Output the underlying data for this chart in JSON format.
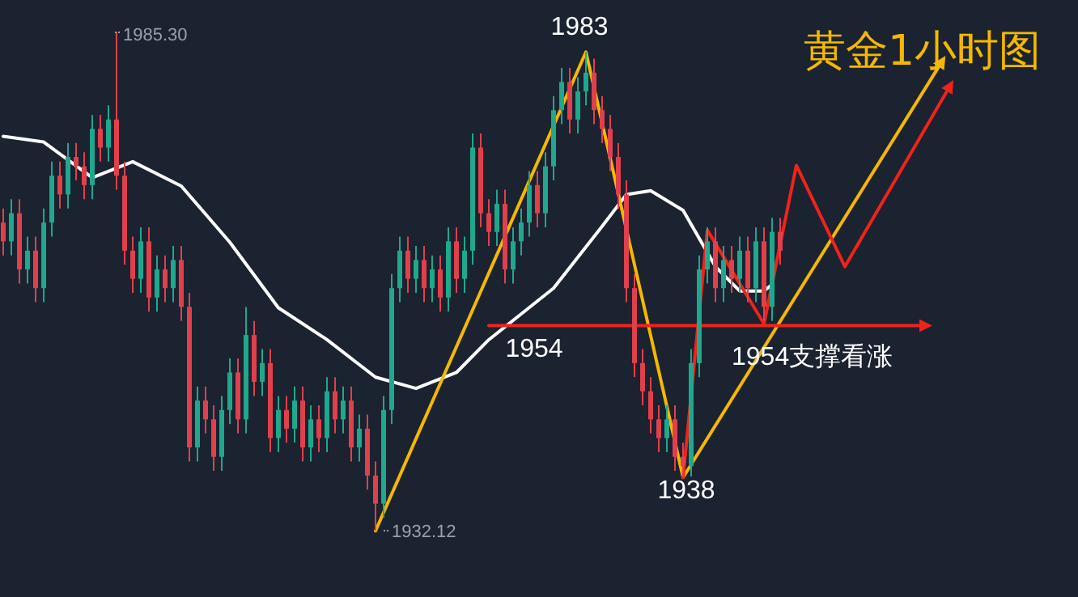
{
  "chart_data": {
    "type": "candlestick",
    "title": "黄金1小时图",
    "categories": [
      null,
      null,
      null,
      null,
      null,
      null,
      null,
      null,
      null,
      null,
      null,
      null,
      null,
      null,
      null,
      null,
      null,
      null,
      null,
      null,
      null,
      null,
      null,
      null,
      null,
      null,
      null,
      null,
      null,
      null,
      null,
      null,
      null,
      null,
      null,
      null,
      null,
      null,
      null,
      null,
      null,
      null,
      null,
      null,
      null,
      null,
      null,
      null,
      null,
      null,
      null,
      null,
      null,
      null,
      null,
      null,
      null,
      null,
      null,
      null,
      null,
      null,
      null,
      null,
      null,
      null,
      null,
      null,
      null,
      null,
      null,
      null,
      null,
      null,
      null,
      null,
      null,
      null,
      null,
      null,
      null,
      null,
      null,
      null,
      null,
      null,
      null,
      null,
      null,
      null,
      null,
      null,
      null,
      null,
      null,
      null,
      null,
      null,
      null,
      null,
      null,
      null,
      null,
      null,
      null,
      null,
      null,
      null,
      null,
      null,
      null,
      null,
      null,
      null,
      null,
      null,
      null,
      null,
      null,
      null,
      null
    ],
    "ohlc": [
      [
        1965,
        1966.5,
        1961.5,
        1963
      ],
      [
        1963,
        1967.5,
        1961.5,
        1966
      ],
      [
        1966,
        1967.5,
        1958.5,
        1960
      ],
      [
        1960,
        1963.5,
        1958.5,
        1962
      ],
      [
        1962,
        1963.5,
        1956.5,
        1958
      ],
      [
        1958,
        1966.5,
        1956.5,
        1965
      ],
      [
        1965,
        1971.5,
        1963.5,
        1970
      ],
      [
        1970,
        1971.5,
        1966.5,
        1968
      ],
      [
        1968,
        1973.5,
        1966.5,
        1972
      ],
      [
        1972,
        1973.5,
        1969.5,
        1971
      ],
      [
        1971,
        1972.5,
        1967.5,
        1969
      ],
      [
        1969,
        1976.5,
        1967.5,
        1975
      ],
      [
        1975,
        1976.5,
        1971.5,
        1973
      ],
      [
        1973,
        1977.5,
        1971.5,
        1976
      ],
      [
        1976,
        1985.3,
        1968.5,
        1970
      ],
      [
        1970,
        1971.5,
        1960.5,
        1962
      ],
      [
        1962,
        1963.5,
        1957.5,
        1959
      ],
      [
        1959,
        1964.5,
        1957.5,
        1963
      ],
      [
        1963,
        1964.5,
        1955.5,
        1957
      ],
      [
        1957,
        1961.5,
        1955.5,
        1960
      ],
      [
        1960,
        1961.5,
        1956.5,
        1958
      ],
      [
        1958,
        1962.5,
        1956.5,
        1961
      ],
      [
        1961,
        1962.5,
        1954.5,
        1956
      ],
      [
        1956,
        1957.5,
        1939.5,
        1941
      ],
      [
        1941,
        1947.5,
        1939.5,
        1946
      ],
      [
        1946,
        1947.5,
        1942.5,
        1944
      ],
      [
        1944,
        1945.5,
        1938.5,
        1940
      ],
      [
        1940,
        1946.5,
        1938.5,
        1945
      ],
      [
        1945,
        1950.5,
        1943.5,
        1949
      ],
      [
        1949,
        1950.5,
        1942.5,
        1944
      ],
      [
        1944,
        1956,
        1942.5,
        1953
      ],
      [
        1953,
        1954.5,
        1946.5,
        1948
      ],
      [
        1948,
        1951.5,
        1946.5,
        1950
      ],
      [
        1950,
        1951.5,
        1940.5,
        1942
      ],
      [
        1942,
        1946.5,
        1940.5,
        1945
      ],
      [
        1945,
        1946.5,
        1941.5,
        1943
      ],
      [
        1943,
        1947.5,
        1941.5,
        1946
      ],
      [
        1946,
        1947.5,
        1939.5,
        1941
      ],
      [
        1941,
        1945.5,
        1939.5,
        1944
      ],
      [
        1944,
        1945.5,
        1940.5,
        1942
      ],
      [
        1942,
        1948.5,
        1940.5,
        1947
      ],
      [
        1947,
        1948.5,
        1942.5,
        1944
      ],
      [
        1944,
        1947.5,
        1942.5,
        1946
      ],
      [
        1946,
        1947.5,
        1939.5,
        1941
      ],
      [
        1941,
        1944.5,
        1939.5,
        1943
      ],
      [
        1943,
        1944.5,
        1936.5,
        1938
      ],
      [
        1938,
        1939.5,
        1932.12,
        1935
      ],
      [
        1935,
        1946.5,
        1933.5,
        1945
      ],
      [
        1945,
        1959.5,
        1943.5,
        1958
      ],
      [
        1958,
        1963.5,
        1956.5,
        1962
      ],
      [
        1962,
        1963.5,
        1957.5,
        1959
      ],
      [
        1959,
        1962.5,
        1957.5,
        1961
      ],
      [
        1961,
        1962.5,
        1956.5,
        1958
      ],
      [
        1958,
        1961.5,
        1956.5,
        1960
      ],
      [
        1960,
        1961.5,
        1955.5,
        1957
      ],
      [
        1957,
        1964.5,
        1955.5,
        1963
      ],
      [
        1963,
        1964.5,
        1957.5,
        1959
      ],
      [
        1959,
        1963.5,
        1957.5,
        1962
      ],
      [
        1962,
        1974.5,
        1960.5,
        1973
      ],
      [
        1973,
        1974.5,
        1964.5,
        1966
      ],
      [
        1966,
        1967.5,
        1962.5,
        1964
      ],
      [
        1964,
        1968.5,
        1962.5,
        1967
      ],
      [
        1967,
        1968.5,
        1958.5,
        1960
      ],
      [
        1960,
        1964.5,
        1958.5,
        1963
      ],
      [
        1963,
        1966.5,
        1961.5,
        1965
      ],
      [
        1965,
        1970.5,
        1963.5,
        1969
      ],
      [
        1969,
        1970.5,
        1964.5,
        1966
      ],
      [
        1966,
        1972.5,
        1964.5,
        1971
      ],
      [
        1971,
        1978.5,
        1969.5,
        1977
      ],
      [
        1977,
        1981.5,
        1975.5,
        1980
      ],
      [
        1980,
        1981.5,
        1974.5,
        1976
      ],
      [
        1976,
        1980.5,
        1974.5,
        1979
      ],
      [
        1979,
        1983.2,
        1977.5,
        1981
      ],
      [
        1981,
        1982.5,
        1975.5,
        1977
      ],
      [
        1977,
        1978.5,
        1973.5,
        1975
      ],
      [
        1975,
        1976.5,
        1970.5,
        1972
      ],
      [
        1972,
        1973.5,
        1966.5,
        1968
      ],
      [
        1968,
        1969.5,
        1956.5,
        1958
      ],
      [
        1958,
        1959.5,
        1948.5,
        1950
      ],
      [
        1950,
        1951.5,
        1945.5,
        1947
      ],
      [
        1947,
        1948.5,
        1942.5,
        1944
      ],
      [
        1944,
        1945.5,
        1940.5,
        1942
      ],
      [
        1942,
        1945.5,
        1940.5,
        1944
      ],
      [
        1944,
        1945.5,
        1938.5,
        1940
      ],
      [
        1940,
        1941.5,
        1937.8,
        1939
      ],
      [
        1939,
        1951.5,
        1937.9,
        1950
      ],
      [
        1950,
        1961.5,
        1948.5,
        1960
      ],
      [
        1960,
        1964.5,
        1958.5,
        1963
      ],
      [
        1963,
        1964.5,
        1956.5,
        1958
      ],
      [
        1958,
        1962.5,
        1956.5,
        1961
      ],
      [
        1961,
        1962.5,
        1957.5,
        1959
      ],
      [
        1959,
        1963.5,
        1957.5,
        1962
      ],
      [
        1962,
        1963.5,
        1956.5,
        1958
      ],
      [
        1958,
        1964.5,
        1956.5,
        1963
      ],
      [
        1963,
        1964.5,
        1954.5,
        1956
      ],
      [
        1956,
        1965.5,
        1954.5,
        1964
      ],
      [
        1964,
        1965.5,
        1960.5,
        1962
      ],
      null,
      null,
      null,
      null,
      null,
      null,
      null,
      null,
      null,
      null,
      null,
      null,
      null,
      null,
      null,
      null,
      null,
      null,
      null,
      null,
      null,
      null,
      null,
      null
    ],
    "series": [
      {
        "type": "line",
        "color": "#ffffff",
        "values": [
          1974.2,
          null,
          null,
          null,
          null,
          1973.6,
          null,
          null,
          null,
          null,
          null,
          1969.8,
          null,
          null,
          null,
          null,
          1971.5,
          null,
          null,
          null,
          null,
          null,
          1968.9,
          null,
          null,
          null,
          null,
          null,
          1962.9,
          null,
          null,
          null,
          null,
          null,
          1955.9,
          null,
          null,
          null,
          null,
          null,
          1952.5,
          null,
          null,
          null,
          null,
          null,
          1948.5,
          null,
          null,
          null,
          null,
          1947.3,
          null,
          null,
          null,
          null,
          1949.0,
          null,
          null,
          null,
          1952.5,
          null,
          null,
          null,
          null,
          null,
          null,
          null,
          1958.0,
          null,
          null,
          null,
          null,
          null,
          1964.6,
          null,
          null,
          1968.0,
          null,
          null,
          1968.4,
          null,
          null,
          null,
          1966.3,
          null,
          null,
          null,
          1960.3,
          null,
          null,
          1957.7,
          null,
          null,
          1957.7,
          1958.4,
          null,
          null,
          null,
          null,
          null,
          null,
          null,
          null,
          null,
          null,
          null,
          null,
          null,
          null,
          null,
          null,
          null,
          null,
          null,
          null,
          null,
          null,
          null,
          null,
          null
        ]
      },
      {
        "type": "line",
        "color": "#f5b800",
        "values": [
          null,
          null,
          null,
          null,
          null,
          null,
          null,
          null,
          null,
          null,
          null,
          null,
          null,
          null,
          null,
          null,
          null,
          null,
          null,
          null,
          null,
          null,
          null,
          null,
          null,
          null,
          null,
          null,
          null,
          null,
          null,
          null,
          null,
          null,
          null,
          null,
          null,
          null,
          null,
          null,
          null,
          null,
          null,
          null,
          null,
          null,
          1932.1,
          null,
          null,
          null,
          null,
          null,
          null,
          null,
          null,
          null,
          null,
          null,
          null,
          null,
          null,
          null,
          null,
          null,
          null,
          null,
          null,
          null,
          null,
          null,
          null,
          null,
          1983.2,
          null,
          null,
          null,
          null,
          null,
          null,
          null,
          null,
          null,
          null,
          null,
          1937.8,
          null,
          null,
          null,
          null,
          null,
          null,
          null,
          null,
          null,
          null,
          null,
          null,
          null,
          null,
          null,
          null,
          null,
          null,
          null,
          null,
          null,
          null,
          null,
          null,
          null,
          null,
          null,
          null,
          null,
          null,
          null,
          1982.2,
          null,
          null,
          null,
          null
        ]
      },
      {
        "type": "line",
        "color": "#f0231b",
        "values": [
          null,
          null,
          null,
          null,
          null,
          null,
          null,
          null,
          null,
          null,
          null,
          null,
          null,
          null,
          null,
          null,
          null,
          null,
          null,
          null,
          null,
          null,
          null,
          null,
          null,
          null,
          null,
          null,
          null,
          null,
          null,
          null,
          null,
          null,
          null,
          null,
          null,
          null,
          null,
          null,
          null,
          null,
          null,
          null,
          null,
          null,
          null,
          null,
          null,
          null,
          null,
          null,
          null,
          null,
          null,
          null,
          null,
          null,
          null,
          null,
          null,
          null,
          null,
          null,
          null,
          null,
          null,
          null,
          null,
          null,
          null,
          null,
          null,
          null,
          null,
          null,
          null,
          null,
          null,
          null,
          null,
          null,
          null,
          null,
          1937.8,
          null,
          null,
          1964.2,
          null,
          null,
          null,
          null,
          null,
          null,
          1954.2,
          null,
          null,
          null,
          1971.1,
          null,
          null,
          null,
          null,
          null,
          1960.3,
          null,
          null,
          null,
          null,
          null,
          null,
          null,
          null,
          null,
          null,
          null,
          null,
          1979.6,
          null,
          null,
          null
        ]
      },
      {
        "type": "line",
        "color": "#f0231b",
        "values": [
          null,
          null,
          null,
          null,
          null,
          null,
          null,
          null,
          null,
          null,
          null,
          null,
          null,
          null,
          null,
          null,
          null,
          null,
          null,
          null,
          null,
          null,
          null,
          null,
          null,
          null,
          null,
          null,
          null,
          null,
          null,
          null,
          null,
          null,
          null,
          null,
          null,
          null,
          null,
          null,
          null,
          null,
          null,
          null,
          null,
          null,
          null,
          null,
          null,
          null,
          null,
          null,
          null,
          null,
          null,
          null,
          null,
          null,
          null,
          null,
          1954,
          null,
          null,
          null,
          null,
          null,
          null,
          null,
          null,
          null,
          null,
          null,
          null,
          null,
          null,
          null,
          null,
          null,
          null,
          null,
          null,
          null,
          null,
          null,
          null,
          null,
          null,
          null,
          null,
          null,
          null,
          null,
          null,
          null,
          null,
          null,
          null,
          null,
          null,
          null,
          null,
          null,
          null,
          null,
          null,
          null,
          null,
          null,
          null,
          null,
          null,
          null,
          null,
          null,
          1954,
          null,
          null,
          null,
          null,
          null,
          null
        ]
      }
    ],
    "annotations": [
      "1985.30",
      "1932.12",
      {
        "text": "1983",
        "y": 1983
      },
      {
        "text": "1954",
        "y": 1954
      },
      {
        "text": "1938",
        "y": 1938
      },
      {
        "text": "1954支撑看涨",
        "y": 1954
      }
    ]
  }
}
